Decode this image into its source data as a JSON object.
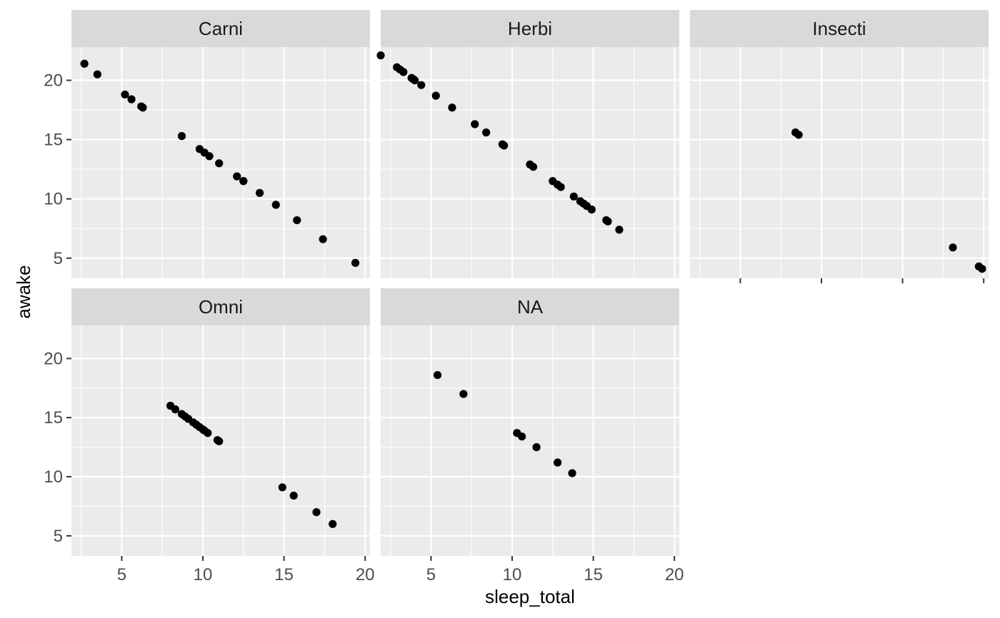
{
  "chart_data": {
    "type": "scatter",
    "xlabel": "sleep_total",
    "ylabel": "awake",
    "xlim": [
      1.9,
      20.3
    ],
    "ylim": [
      3.3,
      22.8
    ],
    "x_major_ticks": [
      5,
      10,
      15,
      20
    ],
    "x_minor_ticks": [
      2.5,
      7.5,
      12.5,
      17.5
    ],
    "y_major_ticks": [
      5,
      10,
      15,
      20
    ],
    "y_minor_ticks": [
      7.5,
      12.5,
      17.5
    ],
    "x_tick_labels": [
      "5",
      "10",
      "15",
      "20"
    ],
    "y_tick_labels": [
      "5",
      "10",
      "15",
      "20"
    ],
    "point_color": "#000000",
    "panel_background": "#ebebeb",
    "strip_background": "#d9d9d9",
    "facets": [
      {
        "label": "Carni",
        "points": [
          {
            "x": 2.7,
            "y": 21.4
          },
          {
            "x": 3.5,
            "y": 20.5
          },
          {
            "x": 5.2,
            "y": 18.8
          },
          {
            "x": 5.6,
            "y": 18.4
          },
          {
            "x": 6.2,
            "y": 17.8
          },
          {
            "x": 6.3,
            "y": 17.7
          },
          {
            "x": 8.7,
            "y": 15.3
          },
          {
            "x": 9.8,
            "y": 14.2
          },
          {
            "x": 10.1,
            "y": 13.9
          },
          {
            "x": 10.4,
            "y": 13.6
          },
          {
            "x": 11.0,
            "y": 13.0
          },
          {
            "x": 12.1,
            "y": 11.9
          },
          {
            "x": 12.5,
            "y": 11.5
          },
          {
            "x": 12.5,
            "y": 11.5
          },
          {
            "x": 13.5,
            "y": 10.5
          },
          {
            "x": 14.5,
            "y": 9.5
          },
          {
            "x": 15.8,
            "y": 8.2
          },
          {
            "x": 17.4,
            "y": 6.6
          },
          {
            "x": 19.4,
            "y": 4.6
          }
        ]
      },
      {
        "label": "Herbi",
        "points": [
          {
            "x": 1.9,
            "y": 22.1
          },
          {
            "x": 2.9,
            "y": 21.1
          },
          {
            "x": 3.1,
            "y": 20.9
          },
          {
            "x": 3.3,
            "y": 20.7
          },
          {
            "x": 3.8,
            "y": 20.2
          },
          {
            "x": 3.9,
            "y": 20.1
          },
          {
            "x": 4.0,
            "y": 20.0
          },
          {
            "x": 4.4,
            "y": 19.6
          },
          {
            "x": 5.3,
            "y": 18.7
          },
          {
            "x": 6.3,
            "y": 17.7
          },
          {
            "x": 7.7,
            "y": 16.3
          },
          {
            "x": 8.4,
            "y": 15.6
          },
          {
            "x": 9.4,
            "y": 14.6
          },
          {
            "x": 9.5,
            "y": 14.5
          },
          {
            "x": 11.1,
            "y": 12.9
          },
          {
            "x": 11.3,
            "y": 12.7
          },
          {
            "x": 12.5,
            "y": 11.5
          },
          {
            "x": 12.8,
            "y": 11.2
          },
          {
            "x": 13.0,
            "y": 11.0
          },
          {
            "x": 13.8,
            "y": 10.2
          },
          {
            "x": 14.2,
            "y": 9.8
          },
          {
            "x": 14.4,
            "y": 9.6
          },
          {
            "x": 14.6,
            "y": 9.4
          },
          {
            "x": 14.9,
            "y": 9.1
          },
          {
            "x": 15.8,
            "y": 8.2
          },
          {
            "x": 15.9,
            "y": 8.1
          },
          {
            "x": 16.6,
            "y": 7.4
          }
        ]
      },
      {
        "label": "Insecti",
        "points": [
          {
            "x": 8.4,
            "y": 15.6
          },
          {
            "x": 8.6,
            "y": 15.4
          },
          {
            "x": 18.1,
            "y": 5.9
          },
          {
            "x": 19.7,
            "y": 4.3
          },
          {
            "x": 19.9,
            "y": 4.1
          }
        ]
      },
      {
        "label": "Omni",
        "points": [
          {
            "x": 8.0,
            "y": 16.0
          },
          {
            "x": 8.3,
            "y": 15.7
          },
          {
            "x": 8.7,
            "y": 15.3
          },
          {
            "x": 8.9,
            "y": 15.1
          },
          {
            "x": 9.1,
            "y": 14.9
          },
          {
            "x": 9.4,
            "y": 14.6
          },
          {
            "x": 9.6,
            "y": 14.4
          },
          {
            "x": 9.8,
            "y": 14.2
          },
          {
            "x": 10.0,
            "y": 14.0
          },
          {
            "x": 10.1,
            "y": 13.9
          },
          {
            "x": 10.3,
            "y": 13.7
          },
          {
            "x": 10.9,
            "y": 13.1
          },
          {
            "x": 11.0,
            "y": 13.0
          },
          {
            "x": 14.9,
            "y": 9.1
          },
          {
            "x": 15.6,
            "y": 8.4
          },
          {
            "x": 17.0,
            "y": 7.0
          },
          {
            "x": 18.0,
            "y": 6.0
          }
        ]
      },
      {
        "label": "NA",
        "points": [
          {
            "x": 5.4,
            "y": 18.6
          },
          {
            "x": 7.0,
            "y": 17.0
          },
          {
            "x": 10.3,
            "y": 13.7
          },
          {
            "x": 10.6,
            "y": 13.4
          },
          {
            "x": 11.5,
            "y": 12.5
          },
          {
            "x": 12.8,
            "y": 11.2
          },
          {
            "x": 13.7,
            "y": 10.3
          }
        ]
      }
    ]
  }
}
